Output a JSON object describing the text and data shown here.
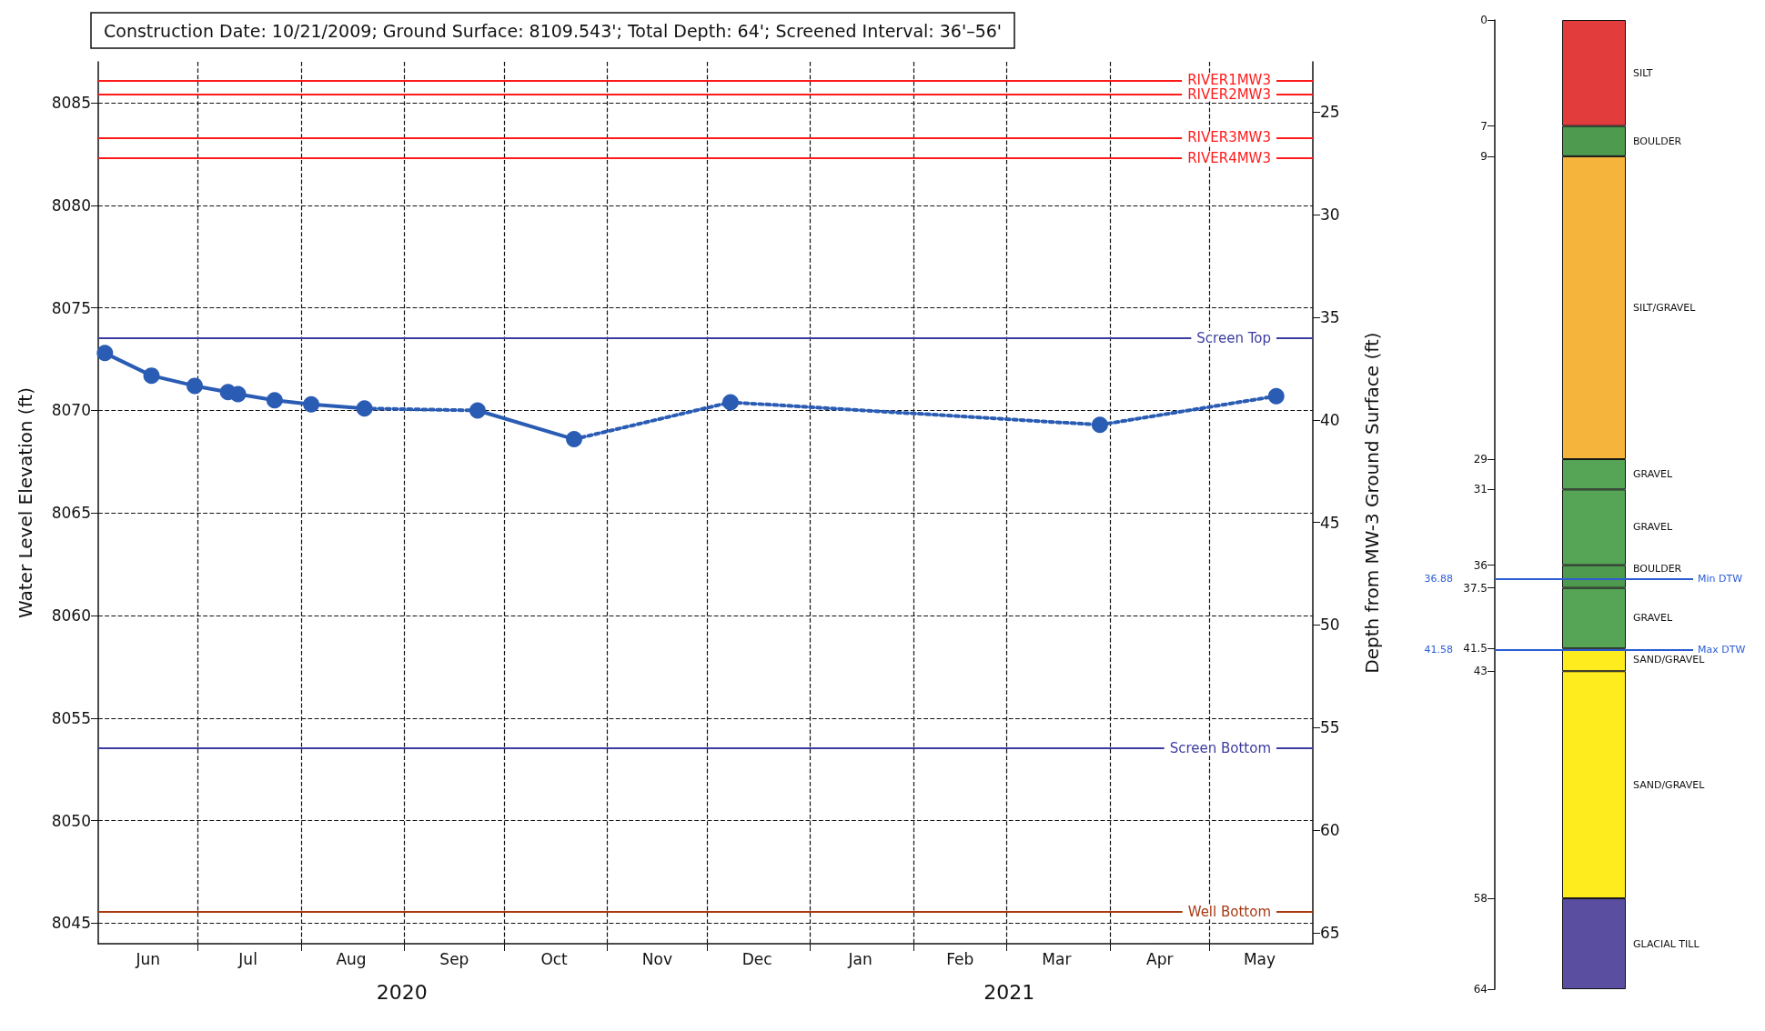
{
  "chart_data": [
    {
      "type": "line",
      "title": "Construction Date: 10/21/2009; Ground Surface: 8109.543'; Total Depth: 64'; Screened Interval: 36'–56'",
      "ylabel": "Water Level Elevation (ft)",
      "y2label": "Depth from MW-3 Ground Surface (ft)",
      "xlim": [
        "2020-06-01",
        "2021-06-01"
      ],
      "xticks": [
        {
          "value": "2020-07-01",
          "label": null
        },
        {
          "value": "2020-08-01",
          "label": null
        },
        {
          "value": "2020-09-01",
          "label": null
        },
        {
          "value": "2020-10-01",
          "label": null
        },
        {
          "value": "2020-11-01",
          "label": null
        },
        {
          "value": "2020-12-01",
          "label": null
        },
        {
          "value": "2021-01-01",
          "label": null
        },
        {
          "value": "2021-02-01",
          "label": null
        },
        {
          "value": "2021-03-01",
          "label": null
        },
        {
          "value": "2021-04-01",
          "label": null
        },
        {
          "value": "2021-05-01",
          "label": null
        },
        {
          "value": "2020-06-16",
          "label": "Jun"
        },
        {
          "value": "2020-07-16",
          "label": "Jul"
        },
        {
          "value": "2020-08-16",
          "label": "Aug"
        },
        {
          "value": "2020-09-16",
          "label": "Sep"
        },
        {
          "value": "2020-10-16",
          "label": "Oct"
        },
        {
          "value": "2020-11-16",
          "label": "Nov"
        },
        {
          "value": "2020-12-16",
          "label": "Dec"
        },
        {
          "value": "2021-01-16",
          "label": "Jan"
        },
        {
          "value": "2021-02-15",
          "label": "Feb"
        },
        {
          "value": "2021-03-16",
          "label": "Mar"
        },
        {
          "value": "2021-04-16",
          "label": "Apr"
        },
        {
          "value": "2021-05-16",
          "label": "May"
        }
      ],
      "ylim": [
        8044,
        8087
      ],
      "yticks": [
        8045,
        8050,
        8055,
        8060,
        8065,
        8070,
        8075,
        8080,
        8085
      ],
      "y2lim": [
        65.543,
        22.543
      ],
      "y2ticks": [
        25,
        30,
        35,
        40,
        45,
        50,
        55,
        60,
        65
      ],
      "grid": true,
      "legend": false,
      "series": [
        {
          "type": "scatter",
          "marker": "circle",
          "color": "#2a5cb4",
          "x": [
            "2020-06-03",
            "2020-06-17",
            "2020-06-30",
            "2020-07-10",
            "2020-07-13",
            "2020-07-24",
            "2020-08-04",
            "2020-08-20",
            "2020-09-23",
            "2020-10-22",
            "2020-12-08",
            "2021-03-29",
            "2021-05-21"
          ],
          "values": [
            8072.8,
            8071.7,
            8071.2,
            8070.9,
            8070.8,
            8070.5,
            8070.3,
            8070.1,
            8070.0,
            8068.6,
            8070.4,
            8069.3,
            8070.7
          ]
        },
        {
          "type": "line",
          "marker": "none",
          "line_style": "solid",
          "color": "#2a5cb4",
          "x": [
            "2020-06-03",
            "2020-06-17",
            "2020-06-30",
            "2020-07-10",
            "2020-07-13",
            "2020-07-24",
            "2020-08-04",
            "2020-08-20"
          ],
          "values": [
            8072.8,
            8071.7,
            8071.2,
            8070.9,
            8070.8,
            8070.5,
            8070.3,
            8070.1
          ]
        },
        {
          "type": "line",
          "marker": "none",
          "line_style": "solid",
          "color": "#2a5cb4",
          "x": [
            "2020-09-23",
            "2020-10-22"
          ],
          "values": [
            8070.0,
            8068.6
          ]
        },
        {
          "type": "line",
          "marker": "none",
          "line_style": "dotted",
          "color": "#2a5cb4",
          "x": [
            "2020-08-20",
            "2020-09-23"
          ],
          "values": [
            8070.1,
            8070.0
          ]
        },
        {
          "type": "line",
          "marker": "none",
          "line_style": "dotted",
          "color": "#2a5cb4",
          "x": [
            "2020-10-22",
            "2020-12-08",
            "2021-03-29",
            "2021-05-21"
          ],
          "values": [
            8068.6,
            8070.4,
            8069.3,
            8070.7
          ]
        }
      ],
      "ref_lines": [
        {
          "axis": "y",
          "value": 8086.1,
          "label": "RIVER1MW3",
          "color": "#ff1a1a"
        },
        {
          "axis": "y",
          "value": 8085.4,
          "label": "RIVER2MW3",
          "color": "#ff1a1a"
        },
        {
          "axis": "y",
          "value": 8083.3,
          "label": "RIVER3MW3",
          "color": "#ff1a1a"
        },
        {
          "axis": "y",
          "value": 8082.3,
          "label": "RIVER4MW3",
          "color": "#ff1a1a"
        },
        {
          "axis": "y2",
          "value": 36,
          "label": "Screen Top",
          "color": "#3c3ca0"
        },
        {
          "axis": "y2",
          "value": 56,
          "label": "Screen Bottom",
          "color": "#3c3ca0"
        },
        {
          "axis": "y2",
          "value": 64,
          "label": "Well Bottom",
          "color": "#a83a14"
        }
      ],
      "annotations": [
        "2020",
        "2021"
      ]
    },
    {
      "type": "bar",
      "stacked": true,
      "categories": [
        null
      ],
      "ylim": [
        64,
        0
      ],
      "yticks": [
        0,
        7,
        9,
        29,
        31,
        36,
        37.5,
        41.5,
        43,
        58,
        64
      ],
      "tick_labels": "y",
      "grid": false,
      "legend": false,
      "series": [
        {
          "name": "SILT",
          "color": "#e23c3c",
          "values": [
            7
          ]
        },
        {
          "name": "BOULDER",
          "color": "#4e9a4e",
          "values": [
            2
          ]
        },
        {
          "name": "SILT/GRAVEL",
          "color": "#f5b43c",
          "values": [
            20
          ]
        },
        {
          "name": "GRAVEL",
          "color": "#56a556",
          "values": [
            2
          ]
        },
        {
          "name": "GRAVEL",
          "color": "#56a556",
          "values": [
            5
          ]
        },
        {
          "name": "BOULDER",
          "color": "#4e9a4e",
          "values": [
            1.5
          ]
        },
        {
          "name": "GRAVEL",
          "color": "#56a556",
          "values": [
            4
          ]
        },
        {
          "name": "SAND/GRAVEL",
          "color": "#ffec1e",
          "values": [
            1.5
          ]
        },
        {
          "name": "SAND/GRAVEL",
          "color": "#ffec1e",
          "values": [
            15
          ]
        },
        {
          "name": "GLACIAL TILL",
          "color": "#5a4ea0",
          "values": [
            6
          ]
        }
      ],
      "ref_lines": [
        {
          "axis": "y",
          "value": 36.88,
          "label": "Min DTW",
          "color": "#2a5cd4"
        },
        {
          "axis": "y",
          "value": 41.58,
          "label": "Max DTW",
          "color": "#2a5cd4"
        }
      ],
      "annotations": [
        "36.88",
        "41.58"
      ]
    }
  ]
}
